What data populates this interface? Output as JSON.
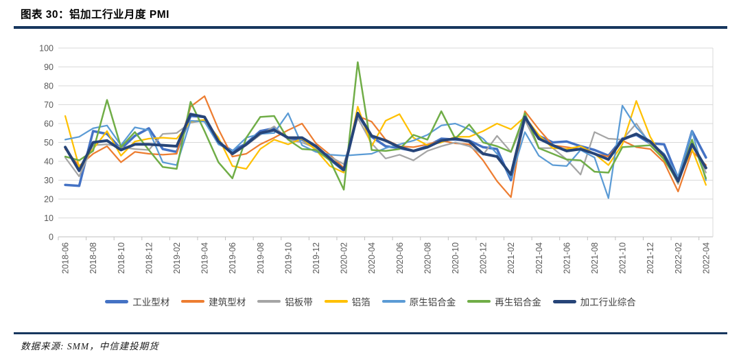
{
  "header": {
    "title": "图表 30：铝加工行业月度 PMI"
  },
  "footer": {
    "source": "数据来源: SMM，中信建投期货"
  },
  "axes": {
    "y_ticks": [
      0,
      10,
      20,
      30,
      40,
      50,
      60,
      70,
      80,
      90,
      100
    ]
  },
  "chart_data": {
    "type": "line",
    "title": "铝加工行业月度 PMI",
    "xlabel": "",
    "ylabel": "",
    "ylim": [
      0,
      100
    ],
    "ytick_step": 10,
    "grid": "horizontal",
    "legend_position": "bottom",
    "x_tick_label_every": 2,
    "x": [
      "2018-06",
      "2018-07",
      "2018-08",
      "2018-09",
      "2018-10",
      "2018-11",
      "2018-12",
      "2019-01",
      "2019-02",
      "2019-03",
      "2019-04",
      "2019-05",
      "2019-06",
      "2019-07",
      "2019-08",
      "2019-09",
      "2019-10",
      "2019-11",
      "2019-12",
      "2020-01",
      "2020-02",
      "2020-03",
      "2020-04",
      "2020-05",
      "2020-06",
      "2020-07",
      "2020-08",
      "2020-09",
      "2020-10",
      "2020-11",
      "2020-12",
      "2021-01",
      "2021-02",
      "2021-03",
      "2021-04",
      "2021-05",
      "2021-06",
      "2021-07",
      "2021-08",
      "2021-09",
      "2021-10",
      "2021-11",
      "2021-12",
      "2022-01",
      "2022-02",
      "2022-03",
      "2022-04"
    ],
    "series": [
      {
        "name": "工业型材",
        "color": "#4472C4",
        "width": 3.5,
        "values": [
          27.5,
          27,
          56,
          54.5,
          46.5,
          53.5,
          57.5,
          46.5,
          45,
          64,
          63.5,
          50,
          45.5,
          49.5,
          56,
          57.5,
          52,
          51.5,
          47.5,
          41,
          35,
          65,
          53,
          48,
          47,
          45.5,
          48,
          52,
          51.5,
          51,
          47.5,
          46.5,
          30,
          63,
          53.5,
          50,
          50.5,
          48,
          46,
          43,
          52,
          54,
          49.5,
          49,
          31,
          56,
          42
        ]
      },
      {
        "name": "建筑型材",
        "color": "#ED7D31",
        "width": 2.25,
        "values": [
          46.5,
          37.5,
          44,
          48,
          39.5,
          45,
          44,
          43.5,
          44,
          69,
          74.5,
          57,
          42.5,
          44,
          49,
          52.5,
          56.5,
          60,
          49.5,
          43.5,
          36.5,
          64,
          61,
          51.5,
          48,
          47.5,
          49,
          51,
          49.5,
          49,
          40.5,
          29.5,
          21,
          66.5,
          57,
          48.5,
          47.5,
          46.5,
          44,
          42.5,
          51,
          47.5,
          46.5,
          39.5,
          24,
          45.5,
          38
        ]
      },
      {
        "name": "铝板带",
        "color": "#A5A5A5",
        "width": 2.25,
        "values": [
          42,
          32,
          48.5,
          49,
          47.5,
          46.5,
          46,
          54.5,
          55,
          60.5,
          61.5,
          51.5,
          43.5,
          48.5,
          54,
          58.5,
          51.5,
          50,
          47,
          42.5,
          38.5,
          63,
          49.5,
          41.5,
          43.5,
          40.5,
          45.5,
          48,
          50,
          48,
          43.5,
          53.5,
          45,
          62,
          47,
          47,
          41,
          33,
          55.5,
          52,
          51.5,
          60,
          49,
          42,
          28,
          50,
          34
        ]
      },
      {
        "name": "铝箔",
        "color": "#FFC000",
        "width": 2.25,
        "values": [
          64,
          37,
          46.5,
          56,
          43,
          50.5,
          52,
          52.5,
          52,
          61,
          62,
          52.5,
          37.5,
          36,
          46.5,
          51.5,
          49,
          52,
          46,
          37.5,
          34,
          69,
          48,
          61.5,
          65,
          52.5,
          48.5,
          50,
          53,
          53,
          56,
          60,
          57,
          63.5,
          54,
          47,
          46.5,
          48,
          44,
          38,
          49,
          72,
          53,
          40.5,
          30,
          46.5,
          27.5
        ]
      },
      {
        "name": "原生铝合金",
        "color": "#5B9BD5",
        "width": 2.25,
        "values": [
          51.5,
          53,
          57.5,
          59,
          48.5,
          58,
          56.5,
          39.5,
          38,
          61.5,
          61,
          49,
          45.5,
          52.5,
          54.5,
          55,
          65.5,
          48.5,
          45,
          43.5,
          43,
          43.5,
          44,
          47,
          49,
          51,
          54,
          59,
          60,
          57,
          52,
          44,
          31,
          55.5,
          43,
          38,
          37.5,
          46,
          42,
          20.5,
          69.5,
          58,
          50,
          44,
          32,
          56,
          30
        ]
      },
      {
        "name": "再生铝合金",
        "color": "#70AD47",
        "width": 2.5,
        "values": [
          42.5,
          40.5,
          45.5,
          72.5,
          47.5,
          55.5,
          46,
          37,
          36,
          71.5,
          56,
          39.5,
          31,
          52.5,
          63.5,
          64,
          51.5,
          46.5,
          46,
          40.5,
          25,
          92.5,
          46,
          45.5,
          46.5,
          54,
          51.5,
          66.5,
          52,
          59.5,
          50,
          48,
          45,
          65.5,
          47,
          44,
          41,
          40.5,
          34.5,
          34,
          47.5,
          48,
          48.5,
          41,
          29,
          51.5,
          31
        ]
      },
      {
        "name": "加工行业综合",
        "color": "#264478",
        "width": 4,
        "values": [
          47.5,
          35,
          50,
          51,
          46,
          49,
          49,
          48.5,
          48,
          65,
          63.5,
          50.5,
          44,
          49,
          55,
          56.5,
          52.5,
          52.5,
          48,
          41.5,
          35.5,
          65.5,
          53.5,
          51,
          47.5,
          45.5,
          47.5,
          51,
          52,
          50.5,
          44,
          42.5,
          33,
          63.5,
          52,
          48.5,
          45.5,
          46.5,
          44,
          41,
          51.5,
          54.5,
          50.5,
          43,
          29.5,
          49,
          36.5
        ]
      }
    ]
  }
}
